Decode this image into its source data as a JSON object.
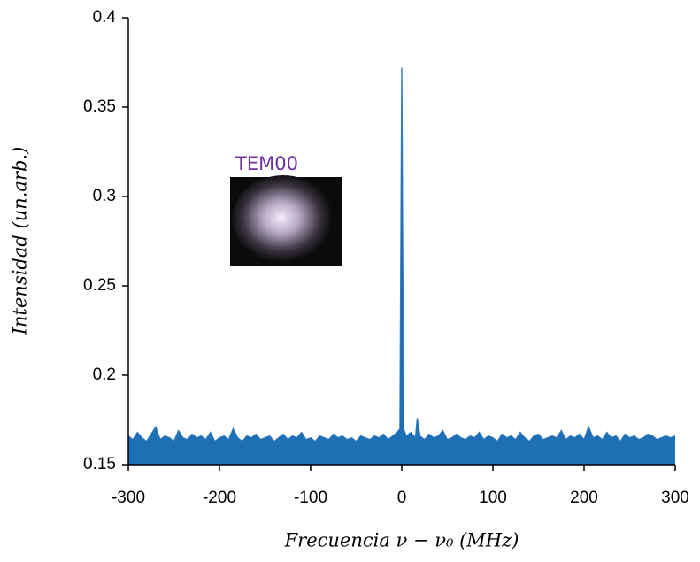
{
  "chart_data": {
    "type": "line",
    "xlabel": "Frecuencia ν − ν₀ (MHz)",
    "ylabel": "Intensidad (un.arb.)",
    "annotation": "TEM00",
    "xlim": [
      -300,
      300
    ],
    "xticks": [
      -300,
      -200,
      -100,
      0,
      100,
      200,
      300
    ],
    "ylim": [
      0.15,
      0.4
    ],
    "yticks": [
      0.15,
      0.2,
      0.25,
      0.3,
      0.35,
      0.4
    ],
    "series": [
      {
        "color": "#1f6fb5",
        "x": [
          -300,
          -295,
          -290,
          -285,
          -280,
          -275,
          -270,
          -265,
          -260,
          -255,
          -250,
          -245,
          -240,
          -235,
          -230,
          -225,
          -220,
          -215,
          -210,
          -205,
          -200,
          -195,
          -190,
          -185,
          -180,
          -175,
          -170,
          -165,
          -160,
          -155,
          -150,
          -145,
          -140,
          -135,
          -130,
          -125,
          -120,
          -115,
          -110,
          -105,
          -100,
          -95,
          -90,
          -85,
          -80,
          -75,
          -70,
          -65,
          -60,
          -55,
          -50,
          -45,
          -40,
          -35,
          -30,
          -25,
          -20,
          -15,
          -10,
          -5,
          -2,
          0,
          2,
          5,
          10,
          15,
          17,
          20,
          25,
          30,
          35,
          40,
          45,
          50,
          55,
          60,
          65,
          70,
          75,
          80,
          85,
          90,
          95,
          100,
          105,
          110,
          115,
          120,
          125,
          130,
          135,
          140,
          145,
          150,
          155,
          160,
          165,
          170,
          175,
          180,
          185,
          190,
          195,
          200,
          205,
          210,
          215,
          220,
          225,
          230,
          235,
          240,
          245,
          250,
          255,
          260,
          265,
          270,
          275,
          280,
          285,
          290,
          295,
          300
        ],
        "values": [
          0.166,
          0.164,
          0.168,
          0.165,
          0.163,
          0.167,
          0.171,
          0.164,
          0.166,
          0.165,
          0.163,
          0.169,
          0.165,
          0.164,
          0.167,
          0.165,
          0.166,
          0.164,
          0.168,
          0.163,
          0.165,
          0.166,
          0.164,
          0.17,
          0.165,
          0.163,
          0.166,
          0.165,
          0.167,
          0.164,
          0.165,
          0.166,
          0.163,
          0.165,
          0.167,
          0.164,
          0.166,
          0.165,
          0.168,
          0.164,
          0.165,
          0.163,
          0.166,
          0.165,
          0.164,
          0.167,
          0.165,
          0.166,
          0.164,
          0.165,
          0.163,
          0.166,
          0.165,
          0.164,
          0.166,
          0.165,
          0.167,
          0.164,
          0.166,
          0.168,
          0.17,
          0.372,
          0.17,
          0.166,
          0.168,
          0.165,
          0.176,
          0.166,
          0.164,
          0.167,
          0.165,
          0.166,
          0.169,
          0.164,
          0.165,
          0.167,
          0.165,
          0.164,
          0.166,
          0.165,
          0.168,
          0.164,
          0.166,
          0.165,
          0.163,
          0.167,
          0.165,
          0.166,
          0.164,
          0.168,
          0.165,
          0.163,
          0.166,
          0.167,
          0.164,
          0.165,
          0.166,
          0.165,
          0.169,
          0.164,
          0.166,
          0.165,
          0.167,
          0.164,
          0.171,
          0.165,
          0.166,
          0.164,
          0.168,
          0.165,
          0.166,
          0.163,
          0.167,
          0.165,
          0.166,
          0.164,
          0.165,
          0.167,
          0.166,
          0.164,
          0.165,
          0.166,
          0.165,
          0.166
        ]
      }
    ]
  }
}
